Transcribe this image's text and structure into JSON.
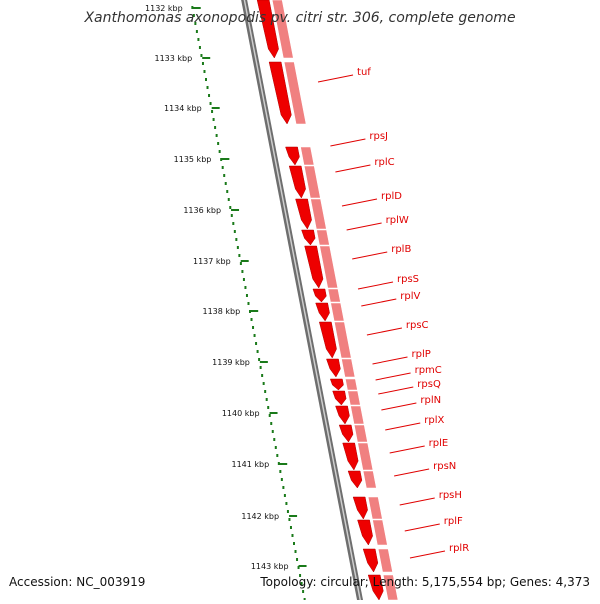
{
  "header": {
    "title": "Xanthomonas axonopodis pv. citri str. 306, complete genome"
  },
  "footer": {
    "accession": "Accession: NC_003919",
    "summary": "Topology: circular; Length: 5,175,554 bp; Genes: 4,373"
  },
  "ruler": {
    "labels": [
      "1132 kbp",
      "1133 kbp",
      "1134 kbp",
      "1135 kbp",
      "1136 kbp",
      "1137 kbp",
      "1138 kbp",
      "1139 kbp",
      "1140 kbp",
      "1141 kbp",
      "1142 kbp",
      "1143 kbp"
    ]
  },
  "genes": [
    {
      "name": "tuf"
    },
    {
      "name": "rpsJ"
    },
    {
      "name": "rplC"
    },
    {
      "name": "rplD"
    },
    {
      "name": "rplW"
    },
    {
      "name": "rplB"
    },
    {
      "name": "rpsS"
    },
    {
      "name": "rplV"
    },
    {
      "name": "rpsC"
    },
    {
      "name": "rplP"
    },
    {
      "name": "rpmC"
    },
    {
      "name": "rpsQ"
    },
    {
      "name": "rplN"
    },
    {
      "name": "rplX"
    },
    {
      "name": "rplE"
    },
    {
      "name": "rpsN"
    },
    {
      "name": "rpsH"
    },
    {
      "name": "rplF"
    },
    {
      "name": "rplR"
    }
  ],
  "colors": {
    "gene_fill": "#ee0000",
    "gene_light": "#f08080",
    "label": "#e00000",
    "backbone": "#777777",
    "ruler": "#1a7a1a"
  }
}
